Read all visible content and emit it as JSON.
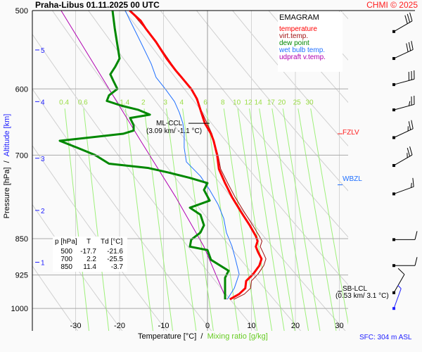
{
  "header": {
    "title": "Praha-Libus    01.11.2025 00 UTC",
    "copyright": "CHMI © 2025"
  },
  "legend": {
    "title": "EMAGRAM",
    "items": [
      {
        "label": "temperature",
        "color": "#ff0000"
      },
      {
        "label": "virt.temp.",
        "color": "#a01010"
      },
      {
        "label": "dew point",
        "color": "#008800"
      },
      {
        "label": "wet bulb temp.",
        "color": "#2070ff"
      },
      {
        "label": "udpraft v.temp.",
        "color": "#b000b0"
      }
    ]
  },
  "table": {
    "headers": [
      "p [hPa]",
      "T",
      "Td [°C]"
    ],
    "rows": [
      [
        "500",
        "-17.7",
        "-21.6"
      ],
      [
        "700",
        "2.2",
        "-25.5"
      ],
      [
        "850",
        "11.4",
        "-3.7"
      ]
    ]
  },
  "annotations": {
    "fzlv": "FZLV",
    "wbzl": "WBZL",
    "mlccl": "ML-CCL",
    "mlccl_val": "(3.09 km/ -1.1 °C)",
    "sblcl": "SB-LCL",
    "sblcl_val": "(0.53 km/ 3.1 °C)",
    "sfc": "SFC: 304 m ASL"
  },
  "axes": {
    "ylabel_p": "Pressure [hPa]",
    "ylabel_sep": "/",
    "ylabel_alt": "Altitude [km]",
    "xlabel_t": "Temperature [°C]",
    "xlabel_sep": "/",
    "xlabel_mr": "Mixing ratio [g/kg]"
  },
  "chart_data": {
    "type": "line",
    "title": "EMAGRAM",
    "xlabel": "Temperature [°C]",
    "ylabel": "Pressure [hPa]",
    "xlim": [
      -40,
      32
    ],
    "ylim": [
      1053,
      500
    ],
    "pressure_ticks": [
      "500",
      "600",
      "700",
      "850",
      "925",
      "1000"
    ],
    "temp_ticks": [
      "-30",
      "-20",
      "-10",
      "0",
      "10",
      "20",
      "30"
    ],
    "altitude_ticks": [
      {
        "km": "5",
        "p": 548
      },
      {
        "km": "4",
        "p": 618
      },
      {
        "km": "3",
        "p": 705
      },
      {
        "km": "2",
        "p": 796
      },
      {
        "km": "1",
        "p": 898
      }
    ],
    "mixing_ratio_labels": [
      "0.4",
      "0.6",
      "1.4",
      "2",
      "3",
      "4",
      "6",
      "8",
      "10",
      "12",
      "14",
      "17",
      "20",
      "25",
      "30"
    ],
    "series": [
      {
        "name": "temperature",
        "color": "#ff0000",
        "p": [
          500,
          512,
          521,
          538,
          559,
          575,
          584,
          600,
          614,
          634,
          650,
          666,
          677,
          700,
          723,
          747,
          772,
          797,
          824,
          845,
          855,
          866,
          877,
          891,
          905,
          923,
          938,
          954,
          967,
          979
        ],
        "t": [
          -17.7,
          -15.2,
          -14.1,
          -11.7,
          -9.3,
          -7.2,
          -5.9,
          -3.7,
          -2.4,
          -1.4,
          -0.6,
          0.8,
          1.4,
          2.2,
          2.6,
          4.0,
          5.6,
          7.5,
          9.6,
          11.0,
          11.4,
          11.0,
          11.5,
          12.3,
          11.8,
          10.4,
          8.8,
          8.6,
          7.2,
          5.1
        ]
      },
      {
        "name": "virt.temp.",
        "color": "#a01010",
        "p": [
          500,
          538,
          575,
          600,
          634,
          666,
          700,
          723,
          747,
          772,
          797,
          824,
          845,
          855,
          866,
          877,
          891,
          905,
          923,
          938,
          954,
          967,
          979
        ],
        "t": [
          -17.6,
          -11.6,
          -7.1,
          -3.6,
          -1.2,
          1.0,
          2.4,
          3.0,
          4.6,
          6.3,
          8.2,
          10.3,
          11.8,
          12.4,
          12.0,
          12.6,
          13.3,
          12.8,
          11.5,
          10.0,
          9.8,
          8.4,
          6.0
        ]
      },
      {
        "name": "dew point",
        "color": "#008800",
        "p": [
          500,
          521,
          538,
          559,
          570,
          580,
          589,
          600,
          609,
          617,
          624,
          630,
          637,
          642,
          653,
          661,
          666,
          677,
          688,
          700,
          714,
          721,
          729,
          738,
          747,
          759,
          778,
          791,
          804,
          824,
          838,
          852,
          866,
          873,
          893,
          916,
          931,
          954,
          979
        ],
        "t": [
          -21.6,
          -21.1,
          -20.6,
          -20,
          -21,
          -22.1,
          -21.4,
          -20.5,
          -22.4,
          -22.9,
          -19.5,
          -15.7,
          -13.1,
          -17.6,
          -16.8,
          -16.8,
          -19.2,
          -33.6,
          -29.6,
          -25.5,
          -22.4,
          -13.6,
          -8.8,
          -4,
          0,
          -0.8,
          0.5,
          -4,
          -1.6,
          -0.8,
          -1.6,
          -3.7,
          -4,
          0,
          0.8,
          4.8,
          4,
          4,
          4
        ]
      },
      {
        "name": "wet bulb temp.",
        "color": "#2070ff",
        "p": [
          500,
          512,
          538,
          566,
          584,
          600,
          618,
          634,
          650,
          666,
          688,
          711,
          735,
          759,
          785,
          811,
          838,
          866,
          893,
          923,
          954,
          979
        ],
        "t": [
          -18.7,
          -17.6,
          -15.2,
          -12.8,
          -11.7,
          -9.6,
          -7.5,
          -6.4,
          -5.6,
          -5.3,
          -5.3,
          -4.8,
          -1.6,
          0.5,
          2.4,
          3.7,
          4.3,
          5.6,
          6.4,
          7.2,
          6.1,
          4.5
        ]
      },
      {
        "name": "udpraft v.temp.",
        "color": "#b000b0",
        "p": [
          500,
          592,
          677,
          772,
          866,
          979
        ],
        "t": [
          -33.3,
          -23.2,
          -15.2,
          -7.2,
          -0.8,
          4.3
        ]
      }
    ],
    "fzlv_p": 666,
    "wbzl_p": 750,
    "mlccl_p": 650,
    "sblcl_p": 961,
    "wind": [
      {
        "p": 525,
        "dir": 240,
        "kt": 30
      },
      {
        "p": 559,
        "dir": 245,
        "kt": 30
      },
      {
        "p": 594,
        "dir": 255,
        "kt": 30
      },
      {
        "p": 630,
        "dir": 255,
        "kt": 25
      },
      {
        "p": 672,
        "dir": 245,
        "kt": 25
      },
      {
        "p": 717,
        "dir": 240,
        "kt": 25
      },
      {
        "p": 766,
        "dir": 250,
        "kt": 15
      },
      {
        "p": 852,
        "dir": 270,
        "kt": 10
      },
      {
        "p": 905,
        "dir": 270,
        "kt": 10
      },
      {
        "p": 964,
        "dir": 210,
        "kt": 10
      }
    ],
    "surface_wind": {
      "dir": 200,
      "kt": 5
    }
  }
}
